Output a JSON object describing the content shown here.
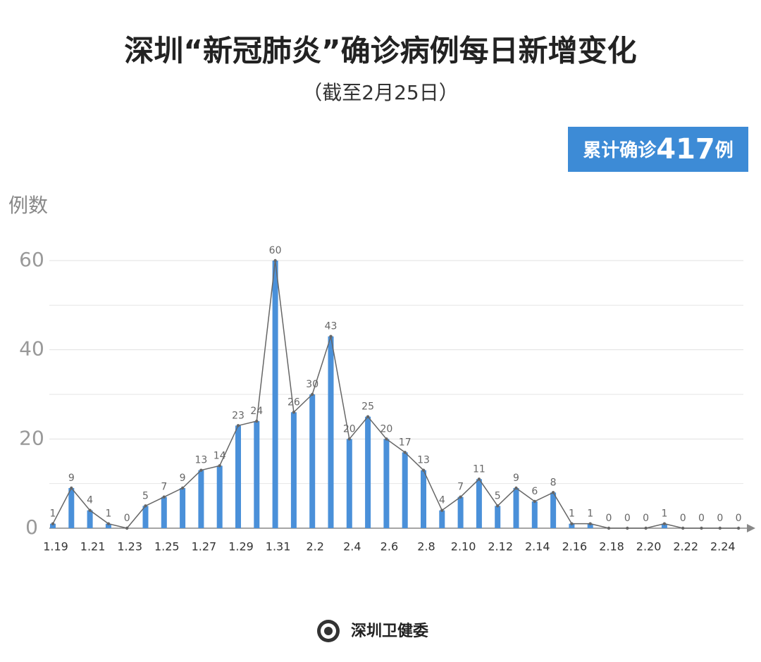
{
  "title": "深圳“新冠肺炎”确诊病例每日新增变化",
  "subtitle": "（截至2月25日）",
  "badge": {
    "prefix": "累计确诊",
    "total": 417,
    "suffix": "例"
  },
  "footer": "深圳卫健委",
  "chart_data": {
    "type": "bar",
    "y_label": "例数",
    "categories": [
      "1.19",
      null,
      "1.21",
      null,
      "1.23",
      null,
      "1.25",
      null,
      "1.27",
      null,
      "1.29",
      null,
      "1.31",
      null,
      "2.2",
      null,
      "2.4",
      null,
      "2.6",
      null,
      "2.8",
      null,
      "2.10",
      null,
      "2.12",
      null,
      "2.14",
      null,
      "2.16",
      null,
      "2.18",
      null,
      "2.20",
      null,
      "2.22",
      null,
      "2.24",
      null
    ],
    "values": [
      1,
      9,
      4,
      1,
      0,
      5,
      7,
      9,
      13,
      14,
      23,
      24,
      60,
      26,
      30,
      43,
      20,
      25,
      20,
      17,
      13,
      4,
      7,
      11,
      5,
      9,
      6,
      8,
      1,
      1,
      0,
      0,
      0,
      1,
      0,
      0,
      0,
      0
    ],
    "color": "#4a90d9",
    "line_color": "#666666",
    "line_overlay": true,
    "ylim": [
      0,
      60
    ],
    "yticks": [
      0,
      20,
      40,
      60
    ],
    "minor_yticks": [
      10,
      30,
      50
    ],
    "grid": true
  }
}
